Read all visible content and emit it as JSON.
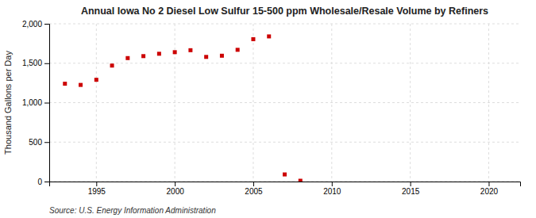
{
  "chart_data": {
    "type": "scatter",
    "title": "Annual Iowa No 2 Diesel Low Sulfur 15-500 ppm Wholesale/Resale Volume by Refiners",
    "ylabel": "Thousand Gallons per Day",
    "annotations": [
      "Source: U.S. Energy Information Administration"
    ],
    "x": [
      1993,
      1994,
      1995,
      1996,
      1997,
      1998,
      1999,
      2000,
      2001,
      2002,
      2003,
      2004,
      2005,
      2006,
      2007,
      2008
    ],
    "values": [
      1240,
      1225,
      1290,
      1470,
      1565,
      1590,
      1620,
      1640,
      1665,
      1580,
      1595,
      1670,
      1805,
      1840,
      90,
      10
    ],
    "color": "#cc0000",
    "marker": "square",
    "xlim": [
      1992,
      2022
    ],
    "xticks": [
      1995,
      2000,
      2005,
      2010,
      2015,
      2020
    ],
    "ylim": [
      0,
      2000
    ],
    "yticks": [
      0,
      500,
      {
        "value": 1000,
        "label": "1,000"
      },
      {
        "value": 1500,
        "label": "1,500"
      },
      {
        "value": 2000,
        "label": "2,000"
      }
    ],
    "grid": true
  }
}
